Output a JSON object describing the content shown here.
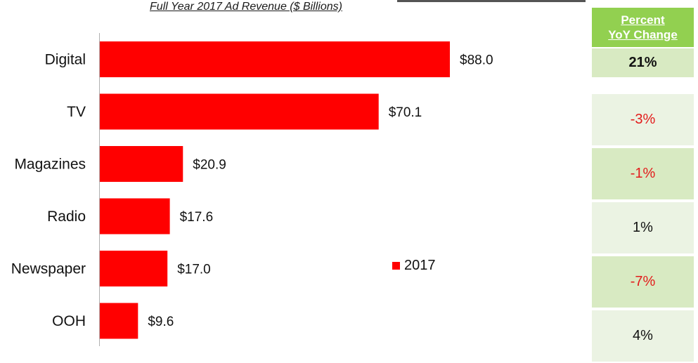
{
  "chart_data": {
    "type": "bar",
    "orientation": "horizontal",
    "title": "Full Year 2017 Ad Revenue ($ Billions)",
    "categories": [
      "Digital",
      "TV",
      "Magazines",
      "Radio",
      "Newspaper",
      "OOH"
    ],
    "series": [
      {
        "name": "2017",
        "values": [
          88.0,
          70.1,
          20.9,
          17.6,
          17.0,
          9.6
        ],
        "labels": [
          "$88.0",
          "$70.1",
          "$20.9",
          "$17.6",
          "$17.0",
          "$9.6"
        ],
        "color": "#ff0000"
      }
    ],
    "xlim": [
      0,
      88.0
    ],
    "grid": false,
    "legend": "lower-right"
  },
  "yoy": {
    "header": [
      "Percent",
      "YoY Change"
    ],
    "header_color": "#92d050",
    "cells": [
      {
        "text": "21%",
        "tone": "pos",
        "bold": true,
        "bg": "#d8eac2"
      },
      {
        "text": "-3%",
        "tone": "neg",
        "bold": false,
        "bg": "#ebf3e3"
      },
      {
        "text": "-1%",
        "tone": "neg",
        "bold": false,
        "bg": "#d8eac2"
      },
      {
        "text": "1%",
        "tone": "pos",
        "bold": false,
        "bg": "#ebf3e3"
      },
      {
        "text": "-7%",
        "tone": "neg",
        "bold": false,
        "bg": "#d8eac2"
      },
      {
        "text": "4%",
        "tone": "pos",
        "bold": false,
        "bg": "#ebf3e3"
      }
    ],
    "positive_color": "#111111",
    "negative_color": "#e31b1b"
  }
}
